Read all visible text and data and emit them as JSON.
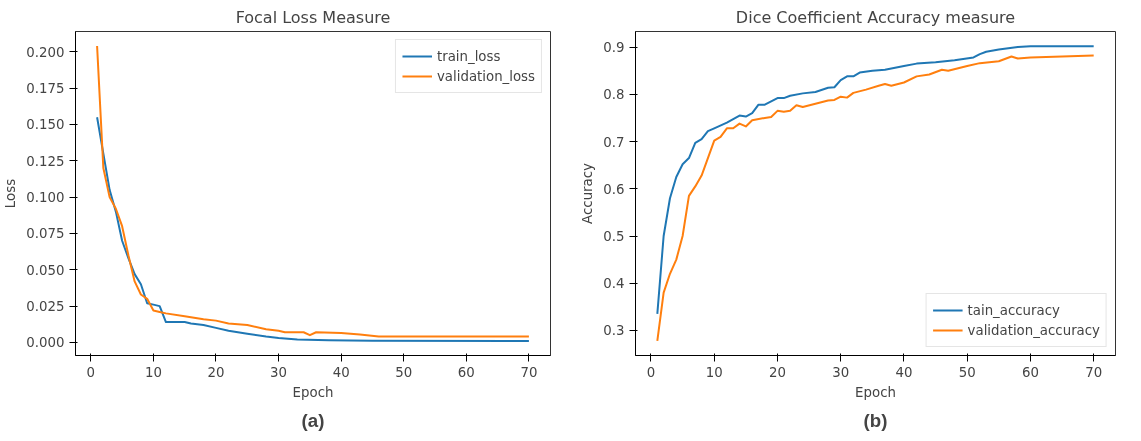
{
  "chart_data": [
    {
      "type": "line",
      "title": "Focal Loss Measure",
      "xlabel": "Epoch",
      "ylabel": "Loss",
      "annotations": [
        "(a)"
      ],
      "xlim": [
        -2.45,
        73.45
      ],
      "xticks": [
        0,
        10,
        20,
        30,
        40,
        50,
        60,
        70
      ],
      "ylim": [
        -0.009,
        0.214
      ],
      "yticks": [
        {
          "value": 0,
          "label": "0.000"
        },
        {
          "value": 0.025,
          "label": "0.025"
        },
        {
          "value": 0.05,
          "label": "0.050"
        },
        {
          "value": 0.075,
          "label": "0.075"
        },
        {
          "value": 0.1,
          "label": "0.100"
        },
        {
          "value": 0.125,
          "label": "0.125"
        },
        {
          "value": 0.15,
          "label": "0.150"
        },
        {
          "value": 0.175,
          "label": "0.175"
        },
        {
          "value": 0.2,
          "label": "0.200"
        }
      ],
      "grid": false,
      "legend": "top right",
      "series": [
        {
          "name": "train_loss",
          "color": "#1f77b4",
          "x": [
            1,
            2,
            3,
            4,
            5,
            6,
            7,
            8,
            9,
            10,
            11,
            12,
            15,
            16,
            18,
            20,
            22,
            25,
            28,
            30,
            33,
            38,
            45,
            70
          ],
          "values": [
            0.155,
            0.13,
            0.105,
            0.09,
            0.07,
            0.058,
            0.047,
            0.04,
            0.027,
            0.026,
            0.025,
            0.014,
            0.014,
            0.013,
            0.012,
            0.01,
            0.008,
            0.006,
            0.004,
            0.003,
            0.002,
            0.0015,
            0.0012,
            0.001
          ]
        },
        {
          "name": "validation_loss",
          "color": "#ff7f0e",
          "x": [
            1,
            2,
            3,
            4,
            5,
            6,
            7,
            8,
            9,
            10,
            11,
            12,
            15,
            18,
            20,
            22,
            25,
            28,
            30,
            31,
            34,
            35,
            36,
            40,
            43,
            46,
            70
          ],
          "values": [
            0.204,
            0.12,
            0.1,
            0.092,
            0.08,
            0.06,
            0.042,
            0.033,
            0.03,
            0.022,
            0.021,
            0.02,
            0.018,
            0.016,
            0.015,
            0.013,
            0.012,
            0.009,
            0.008,
            0.007,
            0.007,
            0.005,
            0.007,
            0.0065,
            0.0055,
            0.004,
            0.004
          ]
        }
      ]
    },
    {
      "type": "line",
      "title": "Dice Coefficient Accuracy measure",
      "xlabel": "Epoch",
      "ylabel": "Accuracy",
      "annotations": [
        "(b)"
      ],
      "xlim": [
        -2.45,
        73.45
      ],
      "xticks": [
        0,
        10,
        20,
        30,
        40,
        50,
        60,
        70
      ],
      "ylim": [
        0.247,
        0.933
      ],
      "yticks": [
        0.3,
        0.4,
        0.5,
        0.6,
        0.7,
        0.8,
        0.9
      ],
      "grid": false,
      "legend": "bottom right",
      "series": [
        {
          "name": "tain_accuracy",
          "color": "#1f77b4",
          "x": [
            1,
            2,
            3,
            4,
            5,
            6,
            7,
            8,
            9,
            10,
            12,
            14,
            15,
            16,
            17,
            18,
            20,
            21,
            22,
            24,
            26,
            28,
            29,
            30,
            31,
            32,
            33,
            35,
            37,
            40,
            42,
            45,
            48,
            51,
            52,
            53,
            55,
            58,
            60,
            70
          ],
          "values": [
            0.335,
            0.5,
            0.58,
            0.625,
            0.652,
            0.665,
            0.697,
            0.705,
            0.722,
            0.728,
            0.74,
            0.755,
            0.753,
            0.76,
            0.778,
            0.778,
            0.792,
            0.792,
            0.797,
            0.802,
            0.805,
            0.814,
            0.815,
            0.83,
            0.838,
            0.838,
            0.846,
            0.85,
            0.852,
            0.86,
            0.865,
            0.868,
            0.872,
            0.878,
            0.885,
            0.89,
            0.895,
            0.9,
            0.902,
            0.902
          ]
        },
        {
          "name": "validation_accuracy",
          "color": "#ff7f0e",
          "x": [
            1,
            2,
            3,
            4,
            5,
            6,
            7,
            8,
            9,
            10,
            11,
            12,
            13,
            14,
            15,
            16,
            18,
            19,
            20,
            21,
            22,
            23,
            24,
            26,
            28,
            29,
            30,
            31,
            32,
            34,
            36,
            37,
            38,
            40,
            42,
            44,
            46,
            47,
            50,
            52,
            55,
            57,
            58,
            60,
            65,
            70
          ],
          "values": [
            0.278,
            0.38,
            0.42,
            0.45,
            0.5,
            0.585,
            0.605,
            0.628,
            0.665,
            0.702,
            0.71,
            0.728,
            0.728,
            0.738,
            0.732,
            0.745,
            0.75,
            0.752,
            0.765,
            0.763,
            0.765,
            0.777,
            0.773,
            0.78,
            0.787,
            0.788,
            0.795,
            0.793,
            0.803,
            0.81,
            0.818,
            0.822,
            0.818,
            0.825,
            0.838,
            0.842,
            0.852,
            0.85,
            0.86,
            0.866,
            0.87,
            0.88,
            0.876,
            0.878,
            0.88,
            0.882
          ]
        }
      ]
    }
  ]
}
